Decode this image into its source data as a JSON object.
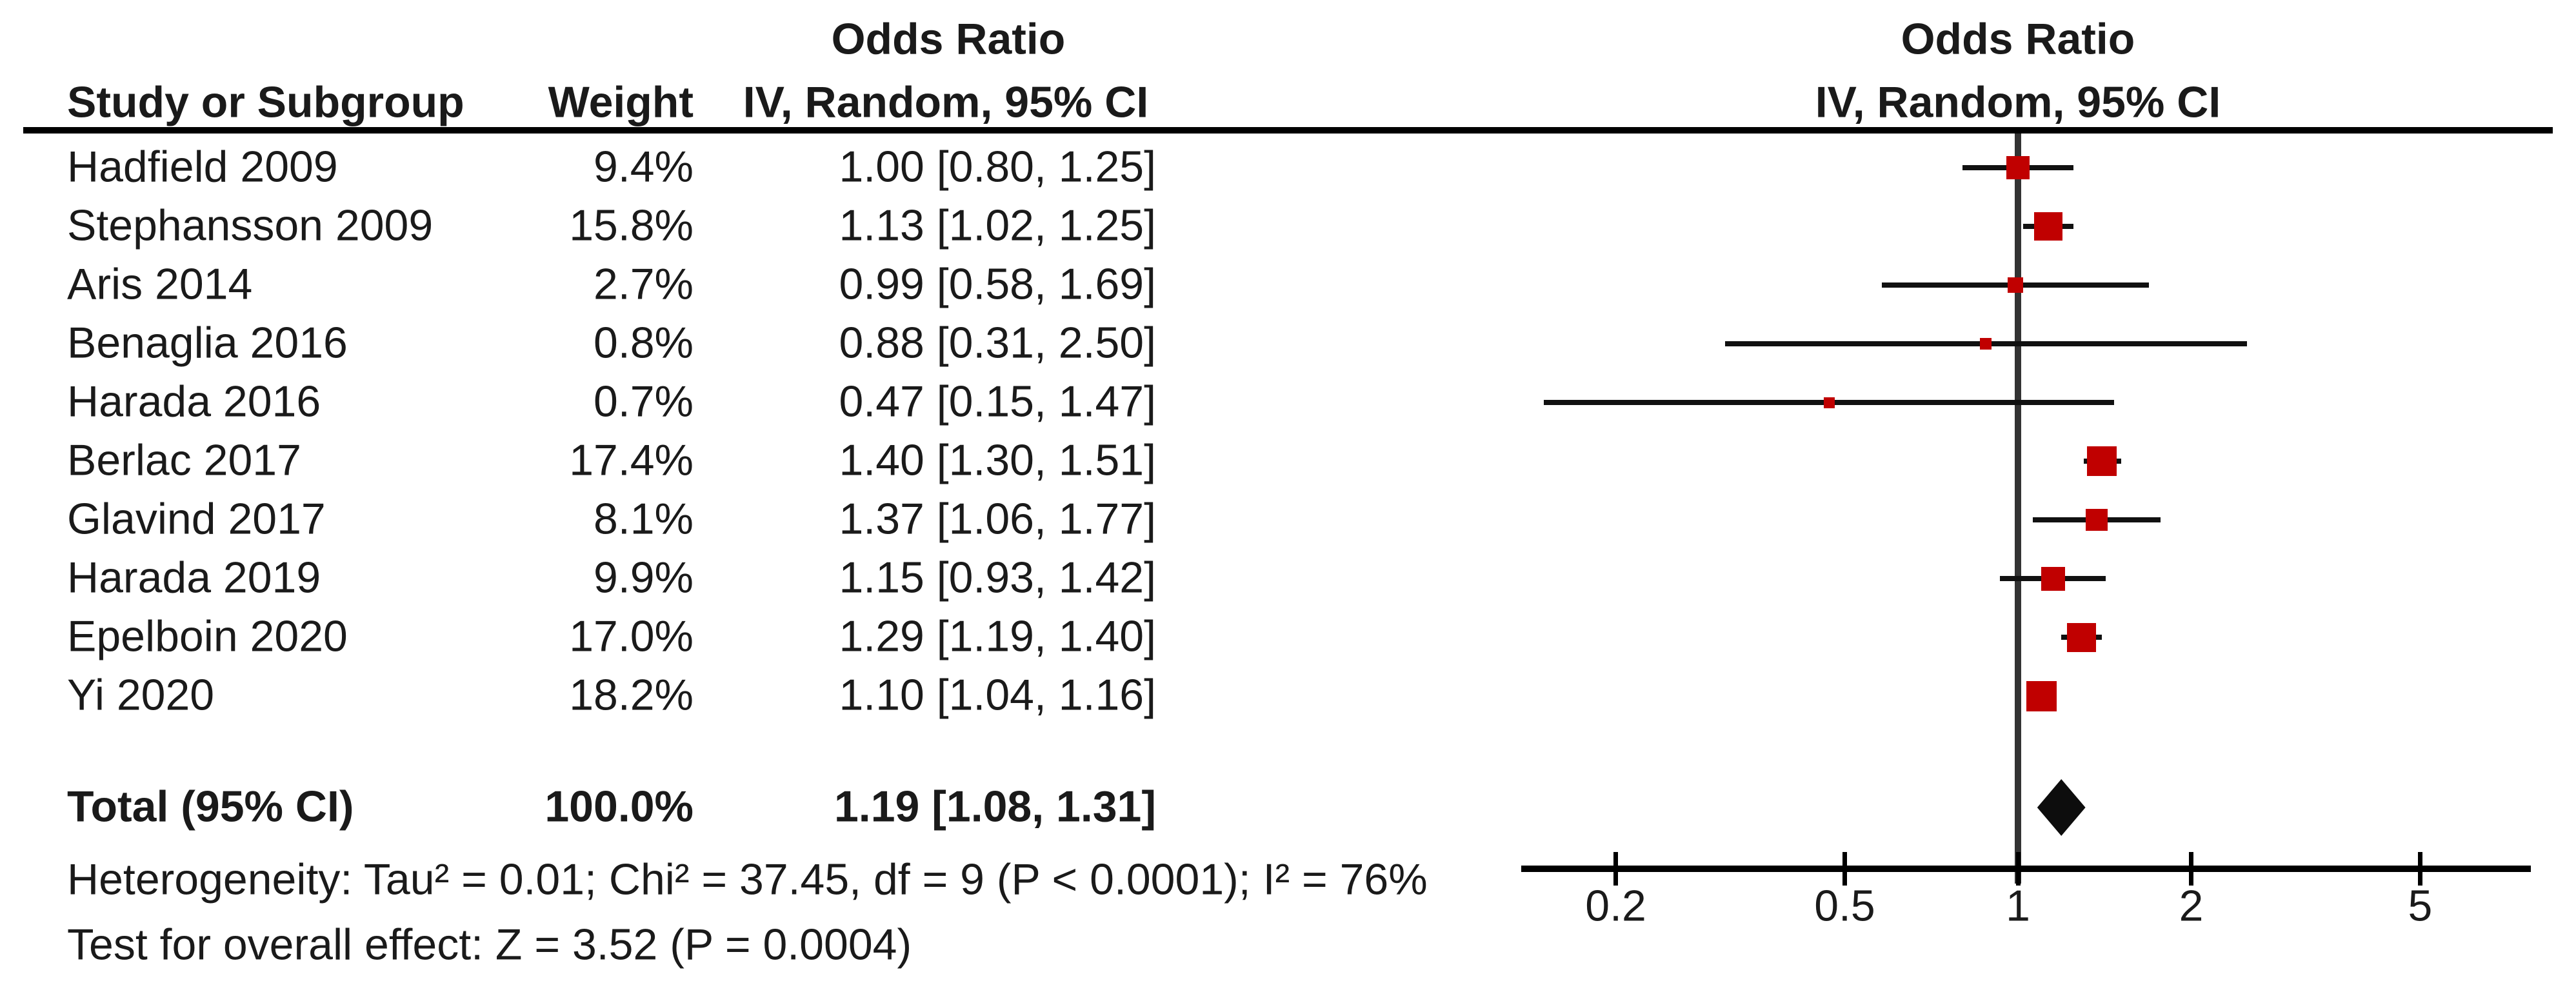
{
  "figure": {
    "kind": "forest-plot",
    "software_style": "RevMan meta-analysis"
  },
  "table_headers": {
    "study_col": "Study or Subgroup",
    "weight_col": "Weight",
    "effect_col_title": "Odds Ratio",
    "effect_col_subtitle": "IV, Random, 95% CI"
  },
  "plot_headers": {
    "title": "Odds Ratio",
    "subtitle": "IV, Random, 95% CI"
  },
  "chart_data": {
    "type": "forest",
    "effect_measure": "Odds Ratio",
    "method": "IV, Random, 95% CI",
    "x_scale": "log",
    "x_ticks": [
      {
        "value": 0.2,
        "label": "0.2"
      },
      {
        "value": 0.5,
        "label": "0.5"
      },
      {
        "value": 1,
        "label": "1"
      },
      {
        "value": 2,
        "label": "2"
      },
      {
        "value": 5,
        "label": "5"
      }
    ],
    "x_axis_range": [
      0.14,
      7.2
    ],
    "no_effect_value": 1,
    "studies": [
      {
        "name": "Hadfield 2009",
        "weight_label": "9.4%",
        "weight_pct": 9.4,
        "or": 1.0,
        "ci_low": 0.8,
        "ci_high": 1.25,
        "or_ci_label": "1.00 [0.80, 1.25]"
      },
      {
        "name": "Stephansson 2009",
        "weight_label": "15.8%",
        "weight_pct": 15.8,
        "or": 1.13,
        "ci_low": 1.02,
        "ci_high": 1.25,
        "or_ci_label": "1.13 [1.02, 1.25]"
      },
      {
        "name": "Aris 2014",
        "weight_label": "2.7%",
        "weight_pct": 2.7,
        "or": 0.99,
        "ci_low": 0.58,
        "ci_high": 1.69,
        "or_ci_label": "0.99 [0.58, 1.69]"
      },
      {
        "name": "Benaglia 2016",
        "weight_label": "0.8%",
        "weight_pct": 0.8,
        "or": 0.88,
        "ci_low": 0.31,
        "ci_high": 2.5,
        "or_ci_label": "0.88 [0.31, 2.50]"
      },
      {
        "name": "Harada 2016",
        "weight_label": "0.7%",
        "weight_pct": 0.7,
        "or": 0.47,
        "ci_low": 0.15,
        "ci_high": 1.47,
        "or_ci_label": "0.47 [0.15, 1.47]"
      },
      {
        "name": "Berlac 2017",
        "weight_label": "17.4%",
        "weight_pct": 17.4,
        "or": 1.4,
        "ci_low": 1.3,
        "ci_high": 1.51,
        "or_ci_label": "1.40 [1.30, 1.51]"
      },
      {
        "name": "Glavind 2017",
        "weight_label": "8.1%",
        "weight_pct": 8.1,
        "or": 1.37,
        "ci_low": 1.06,
        "ci_high": 1.77,
        "or_ci_label": "1.37 [1.06, 1.77]"
      },
      {
        "name": "Harada 2019",
        "weight_label": "9.9%",
        "weight_pct": 9.9,
        "or": 1.15,
        "ci_low": 0.93,
        "ci_high": 1.42,
        "or_ci_label": "1.15 [0.93, 1.42]"
      },
      {
        "name": "Epelboin 2020",
        "weight_label": "17.0%",
        "weight_pct": 17.0,
        "or": 1.29,
        "ci_low": 1.19,
        "ci_high": 1.4,
        "or_ci_label": "1.29 [1.19, 1.40]"
      },
      {
        "name": "Yi 2020",
        "weight_label": "18.2%",
        "weight_pct": 18.2,
        "or": 1.1,
        "ci_low": 1.04,
        "ci_high": 1.16,
        "or_ci_label": "1.10 [1.04, 1.16]"
      }
    ],
    "total": {
      "name": "Total (95% CI)",
      "weight_label": "100.0%",
      "or": 1.19,
      "ci_low": 1.08,
      "ci_high": 1.31,
      "or_ci_label": "1.19 [1.08, 1.31]"
    },
    "heterogeneity": "Heterogeneity: Tau² = 0.01; Chi² = 37.45, df = 9 (P < 0.0001); I² = 76%",
    "overall_effect_test": "Test for overall effect: Z = 3.52 (P = 0.0004)"
  },
  "colors": {
    "marker_red": "#c00000",
    "diamond_black": "#0d0d0d",
    "line_black": "#111111",
    "no_effect_gray": "#333333",
    "text": "#1a1a1a"
  }
}
